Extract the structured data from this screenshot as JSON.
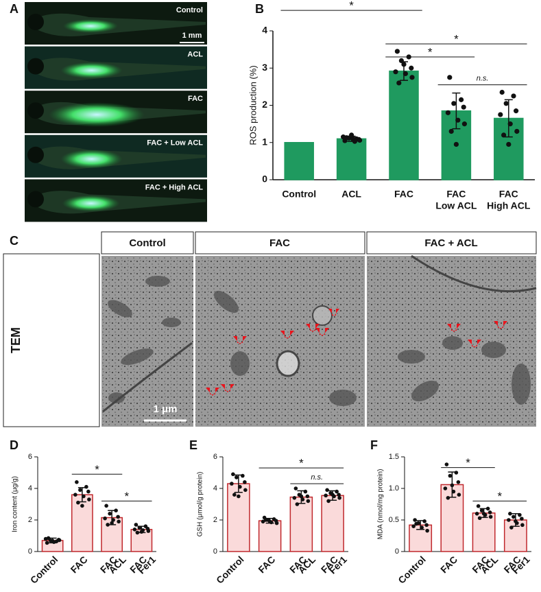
{
  "figure": {
    "panel_labels": [
      "A",
      "B",
      "C",
      "D",
      "E",
      "F"
    ],
    "fish_labels": [
      "Control",
      "ACL",
      "FAC",
      "FAC + Low ACL",
      "FAC + High ACL"
    ],
    "fish_scale": "1 mm",
    "tem_headers": [
      "Control",
      "FAC",
      "FAC + ACL"
    ],
    "tem_label": "TEM",
    "tem_scale": "1 μm"
  },
  "chart_data": [
    {
      "type": "bar",
      "ylabel": "ROS production (%)",
      "categories": [
        [
          "Control"
        ],
        [
          "ACL"
        ],
        [
          "FAC"
        ],
        [
          "FAC",
          "Low ACL"
        ],
        [
          "FAC",
          "High ACL"
        ]
      ],
      "values": [
        1,
        1.1,
        2.92,
        1.85,
        1.65
      ],
      "errors": [
        0,
        0.07,
        0.25,
        0.48,
        0.5
      ],
      "points": [
        [],
        [
          1.05,
          1.1,
          1.12,
          1.08,
          1.15,
          1.1,
          1.06,
          1.13,
          1.2,
          1.03
        ],
        [
          3.45,
          3.3,
          3.2,
          3.0,
          2.9,
          2.85,
          2.75,
          2.6,
          3.1
        ],
        [
          2.75,
          2.15,
          2.05,
          1.95,
          1.8,
          1.6,
          1.5,
          1.3,
          0.95
        ],
        [
          2.35,
          2.25,
          2.05,
          1.85,
          1.75,
          1.5,
          1.3,
          1.2,
          0.95
        ]
      ],
      "color": "#1f9a5f",
      "edge": "#1f9a5f",
      "ylim": [
        0,
        4
      ],
      "yticks": [
        0,
        1,
        2,
        3,
        4
      ],
      "annotations": [
        "*",
        "*",
        "*",
        "n.s."
      ]
    },
    {
      "type": "bar",
      "ylabel": "Iron content (μg/g)",
      "categories": [
        [
          "Control"
        ],
        [
          "FAC"
        ],
        [
          "FAC",
          "ACL"
        ],
        [
          "FAC",
          "Fer1"
        ]
      ],
      "values": [
        0.7,
        3.6,
        2.15,
        1.4
      ],
      "errors": [
        0.15,
        0.45,
        0.45,
        0.2
      ],
      "points": [
        [
          0.55,
          0.65,
          0.7,
          0.75,
          0.8,
          0.6,
          0.72,
          0.85,
          0.68
        ],
        [
          4.4,
          4.1,
          3.9,
          3.8,
          3.6,
          3.5,
          3.3,
          3.1,
          2.9
        ],
        [
          2.9,
          2.6,
          2.4,
          2.2,
          2.1,
          2.0,
          1.9,
          1.7,
          1.8
        ],
        [
          1.7,
          1.6,
          1.5,
          1.45,
          1.4,
          1.35,
          1.3,
          1.2,
          1.25
        ]
      ],
      "color": "#fadada",
      "edge": "#c0282d",
      "ylim": [
        0,
        6
      ],
      "yticks": [
        0,
        2,
        4,
        6
      ],
      "annotations": [
        "*",
        "*"
      ]
    },
    {
      "type": "bar",
      "ylabel": "GSH (μmol/g protein)",
      "categories": [
        [
          "Control"
        ],
        [
          "FAC"
        ],
        [
          "FAC",
          "ACL"
        ],
        [
          "FAC",
          "Fer1"
        ]
      ],
      "values": [
        4.3,
        1.95,
        3.45,
        3.55
      ],
      "errors": [
        0.55,
        0.15,
        0.4,
        0.3
      ],
      "points": [
        [
          4.9,
          4.8,
          4.7,
          4.4,
          4.3,
          4.1,
          3.9,
          3.6,
          3.5
        ],
        [
          2.15,
          2.05,
          2.0,
          1.95,
          1.9,
          1.85,
          1.8,
          2.0,
          1.9
        ],
        [
          4.0,
          3.8,
          3.6,
          3.5,
          3.4,
          3.3,
          3.2,
          3.0,
          3.5
        ],
        [
          3.9,
          3.8,
          3.7,
          3.6,
          3.55,
          3.5,
          3.4,
          3.2,
          3.6
        ]
      ],
      "color": "#fadada",
      "edge": "#c0282d",
      "ylim": [
        0,
        6
      ],
      "yticks": [
        0,
        2,
        4,
        6
      ],
      "annotations": [
        "*",
        "n.s."
      ]
    },
    {
      "type": "bar",
      "ylabel": "MDA (nmol/mg protein)",
      "categories": [
        [
          "Control"
        ],
        [
          "FAC"
        ],
        [
          "FAC",
          "ACL"
        ],
        [
          "FAC",
          "Fer1"
        ]
      ],
      "values": [
        0.42,
        1.06,
        0.61,
        0.5
      ],
      "errors": [
        0.07,
        0.2,
        0.07,
        0.1
      ],
      "points": [
        [
          0.5,
          0.48,
          0.45,
          0.42,
          0.4,
          0.38,
          0.33,
          0.44
        ],
        [
          1.38,
          1.25,
          1.2,
          1.1,
          1.0,
          0.95,
          0.9,
          0.85,
          1.05
        ],
        [
          0.72,
          0.68,
          0.65,
          0.62,
          0.6,
          0.58,
          0.55,
          0.53,
          0.6
        ],
        [
          0.6,
          0.58,
          0.55,
          0.52,
          0.5,
          0.45,
          0.42,
          0.38,
          0.48
        ]
      ],
      "color": "#fadada",
      "edge": "#c0282d",
      "ylim": [
        0,
        1.5
      ],
      "yticks": [
        0,
        0.5,
        {
          "value": 1,
          "label": "1.0"
        },
        1.5
      ],
      "annotations": [
        "*",
        "*"
      ]
    }
  ]
}
